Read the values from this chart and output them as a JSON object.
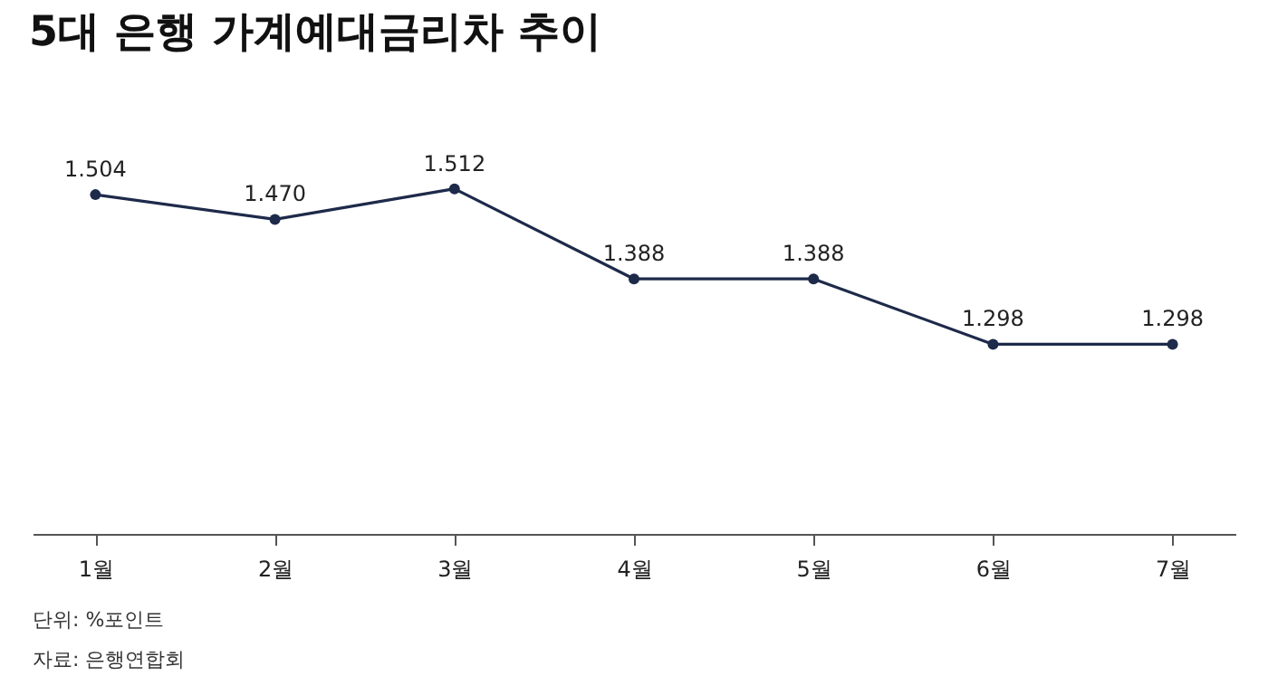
{
  "chart_data": {
    "type": "line",
    "title": "5대 은행 가계예대금리차 추이",
    "categories": [
      "1월",
      "2월",
      "3월",
      "4월",
      "5월",
      "6월",
      "7월"
    ],
    "series": [
      {
        "color": "#1e2a4a",
        "values": [
          1.504,
          1.47,
          1.512,
          1.388,
          1.388,
          1.298,
          1.298
        ],
        "value_labels": [
          "1.504",
          "1.470",
          "1.512",
          "1.388",
          "1.388",
          "1.298",
          "1.298"
        ]
      }
    ],
    "marker": "circle",
    "line_style": "solid",
    "grid": false,
    "legend": false,
    "tick_labels": "x",
    "annotations": [
      "단위: %포인트",
      "자료: 은행연합회"
    ]
  }
}
